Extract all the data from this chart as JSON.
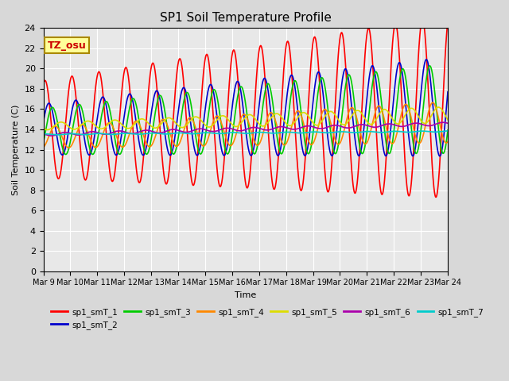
{
  "title": "SP1 Soil Temperature Profile",
  "xlabel": "Time",
  "ylabel": "Soil Temperature (C)",
  "ylim": [
    0,
    24
  ],
  "background_color": "#e8e8e8",
  "tz_label": "TZ_osu",
  "x_tick_labels": [
    "Mar 9",
    "Mar 10",
    "Mar 11",
    "Mar 12",
    "Mar 13",
    "Mar 14",
    "Mar 15",
    "Mar 16",
    "Mar 17",
    "Mar 18",
    "Mar 19",
    "Mar 20",
    "Mar 21",
    "Mar 22",
    "Mar 23",
    "Mar 24"
  ],
  "grid_color": "#ffffff",
  "series_names": [
    "sp1_smT_1",
    "sp1_smT_2",
    "sp1_smT_3",
    "sp1_smT_4",
    "sp1_smT_5",
    "sp1_smT_6",
    "sp1_smT_7"
  ],
  "colors": [
    "#ff0000",
    "#0000cc",
    "#00cc00",
    "#ff8800",
    "#dddd00",
    "#aa00aa",
    "#00cccc"
  ],
  "fig_facecolor": "#d8d8d8"
}
